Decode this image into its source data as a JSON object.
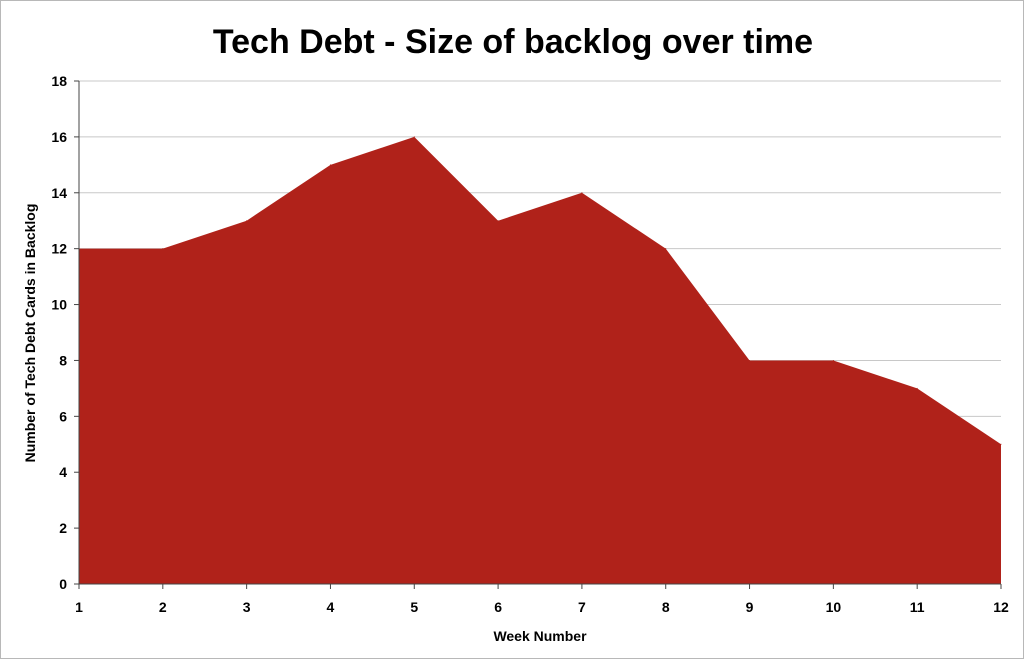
{
  "chart_data": {
    "type": "area",
    "title": "Tech Debt - Size of backlog over time",
    "xlabel": "Week Number",
    "ylabel": "Number of Tech Debt Cards in Backlog",
    "x": [
      1,
      2,
      3,
      4,
      5,
      6,
      7,
      8,
      9,
      10,
      11,
      12
    ],
    "x_tick_labels": [
      "1",
      "2",
      "3",
      "4",
      "5",
      "6",
      "7",
      "8",
      "9",
      "10",
      "11",
      "12"
    ],
    "values": [
      12,
      12,
      13,
      15,
      16,
      13,
      14,
      12,
      8,
      8,
      7,
      5
    ],
    "ylim": [
      0,
      18
    ],
    "y_ticks": [
      0,
      2,
      4,
      6,
      8,
      10,
      12,
      14,
      16,
      18
    ],
    "y_tick_labels": [
      "0",
      "2",
      "4",
      "6",
      "8",
      "10",
      "12",
      "14",
      "16",
      "18"
    ],
    "grid": "horizontal",
    "legend": "none",
    "colors": {
      "area": "#b0221a",
      "grid": "#c8c8c8",
      "axis": "#444444"
    }
  }
}
